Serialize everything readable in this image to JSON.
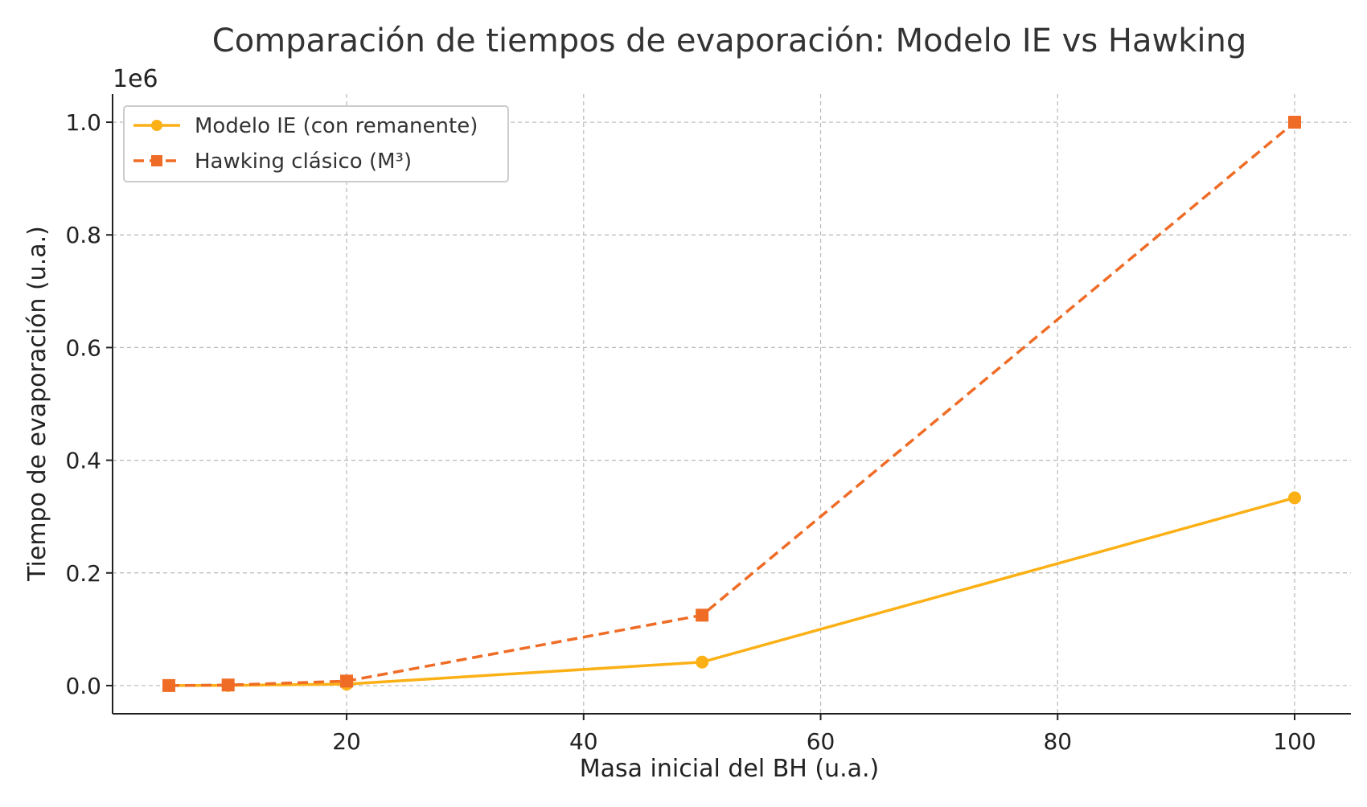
{
  "chart_data": {
    "type": "line",
    "title": "Comparación de tiempos de evaporación: Modelo IE vs Hawking",
    "xlabel": "Masa inicial del BH (u.a.)",
    "ylabel": "Tiempo de evaporación (u.a.)",
    "y_offset_label": "1e6",
    "xlim": [
      0.25,
      104.75
    ],
    "ylim": [
      -0.05,
      1.05
    ],
    "y_scale_factor": 1000000,
    "x_ticks": [
      20,
      40,
      60,
      80,
      100
    ],
    "x_tick_labels": [
      "20",
      "40",
      "60",
      "80",
      "100"
    ],
    "y_ticks": [
      0.0,
      0.2,
      0.4,
      0.6,
      0.8,
      1.0
    ],
    "y_tick_labels": [
      "0.0",
      "0.2",
      "0.4",
      "0.6",
      "0.8",
      "1.0"
    ],
    "grid": true,
    "legend_position": "top-left",
    "x": [
      5,
      10,
      20,
      50,
      100
    ],
    "series": [
      {
        "name": "Modelo IE (con remanente)",
        "values": [
          41.67,
          333.33,
          2666.67,
          41666.67,
          333333.33
        ],
        "color": "#FBB016",
        "marker": "circle",
        "line_style": "solid"
      },
      {
        "name": "Hawking clásico (M³)",
        "values": [
          125,
          1000,
          8000,
          125000,
          1000000
        ],
        "color": "#EF6C26",
        "marker": "square",
        "line_style": "dashed"
      }
    ]
  }
}
